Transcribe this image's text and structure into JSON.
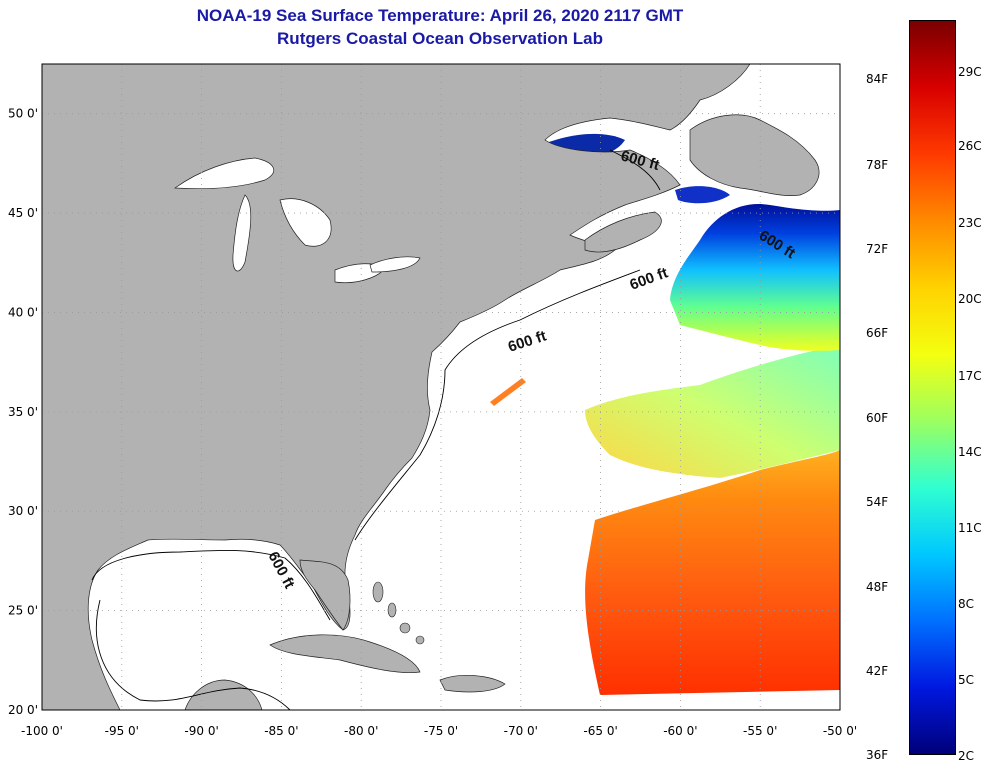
{
  "title": {
    "line1": "NOAA-19 Sea Surface Temperature:  April 26, 2020 2117 GMT",
    "line2": "Rutgers Coastal Ocean Observation Lab"
  },
  "axes": {
    "lat_ticks": [
      "50 0'",
      "45 0'",
      "40 0'",
      "35 0'",
      "30 0'",
      "25 0'",
      "20 0'"
    ],
    "lat_values": [
      50,
      45,
      40,
      35,
      30,
      25,
      20
    ],
    "lon_ticks": [
      "-100 0'",
      "-95 0'",
      "-90 0'",
      "-85 0'",
      "-80 0'",
      "-75 0'",
      "-70 0'",
      "-65 0'",
      "-60 0'",
      "-55 0'",
      "-50 0'"
    ],
    "lon_values": [
      -100,
      -95,
      -90,
      -85,
      -80,
      -75,
      -70,
      -65,
      -60,
      -55,
      -50
    ],
    "lat_range": [
      20,
      52.5
    ],
    "lon_range": [
      -100,
      -50
    ]
  },
  "isobath_labels": [
    {
      "text": "600 ft",
      "region": "gulf-of-st-lawrence"
    },
    {
      "text": "600 ft",
      "region": "grand-banks"
    },
    {
      "text": "600 ft",
      "region": "nova-scotia-shelf"
    },
    {
      "text": "600 ft",
      "region": "mid-atlantic-shelf"
    },
    {
      "text": "600 ft",
      "region": "gulf-of-mexico"
    }
  ],
  "colorbar": {
    "fahrenheit": [
      "84F",
      "78F",
      "72F",
      "66F",
      "60F",
      "54F",
      "48F",
      "42F",
      "36F"
    ],
    "celsius": [
      "29C",
      "26C",
      "23C",
      "20C",
      "17C",
      "14C",
      "11C",
      "8C",
      "5C",
      "2C"
    ],
    "colors": [
      "#7a0000",
      "#d80000",
      "#ff3a00",
      "#ff8a00",
      "#ffd200",
      "#f4ff10",
      "#9cff60",
      "#30ffd0",
      "#00c8ff",
      "#0070ff",
      "#0018e0",
      "#00007a"
    ]
  },
  "colors": {
    "land": "#b2b2b2",
    "ocean_nodata": "#ffffff",
    "grid": "#999999",
    "title": "#1a1aa6"
  }
}
